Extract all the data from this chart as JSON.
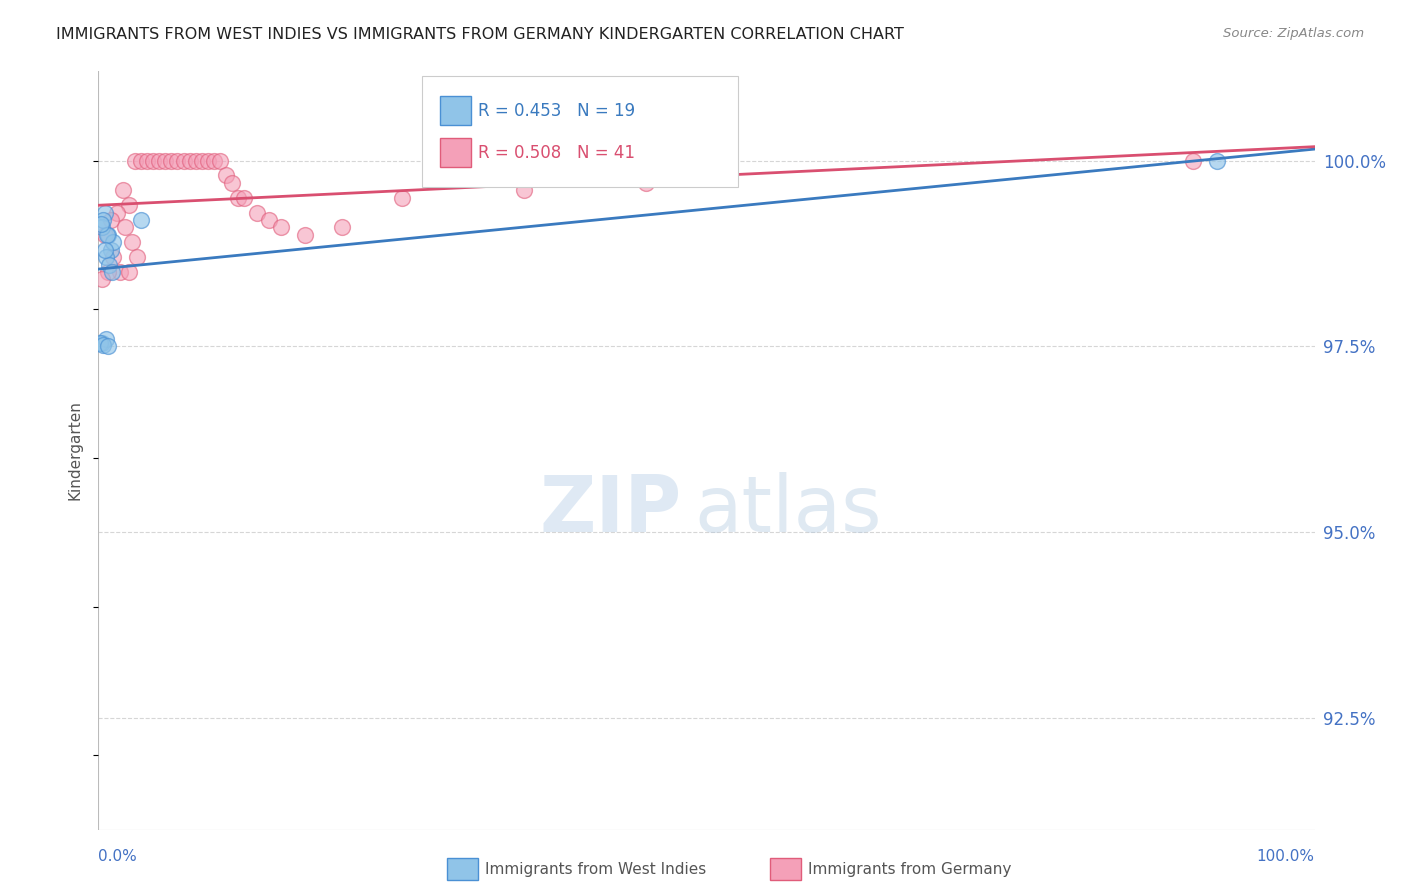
{
  "title": "IMMIGRANTS FROM WEST INDIES VS IMMIGRANTS FROM GERMANY KINDERGARTEN CORRELATION CHART",
  "source": "Source: ZipAtlas.com",
  "ylabel": "Kindergarten",
  "y_ticks": [
    92.5,
    95.0,
    97.5,
    100.0
  ],
  "y_tick_labels": [
    "92.5%",
    "95.0%",
    "97.5%",
    "100.0%"
  ],
  "x_range": [
    0,
    100
  ],
  "y_range": [
    91.0,
    101.2
  ],
  "blue_R": 0.453,
  "blue_N": 19,
  "pink_R": 0.508,
  "pink_N": 41,
  "blue_label": "Immigrants from West Indies",
  "pink_label": "Immigrants from Germany",
  "blue_color": "#90c4e8",
  "pink_color": "#f4a0b8",
  "blue_edge_color": "#4a90d4",
  "pink_edge_color": "#e05c7a",
  "blue_line_color": "#3a7abf",
  "pink_line_color": "#d94f70",
  "blue_points_x": [
    0.5,
    0.8,
    1.0,
    1.2,
    0.3,
    0.6,
    0.9,
    1.1,
    0.4,
    0.7,
    0.2,
    0.5,
    0.3,
    0.6,
    0.1,
    0.4,
    0.8,
    3.5,
    92.0
  ],
  "blue_points_y": [
    99.3,
    99.0,
    98.8,
    98.9,
    99.1,
    98.7,
    98.6,
    98.5,
    99.2,
    99.0,
    99.15,
    98.8,
    97.55,
    97.6,
    97.55,
    97.52,
    97.5,
    99.2,
    100.0
  ],
  "pink_points_x": [
    3.0,
    3.5,
    4.0,
    4.5,
    5.0,
    5.5,
    6.0,
    6.5,
    7.0,
    7.5,
    8.0,
    8.5,
    9.0,
    9.5,
    10.0,
    10.5,
    11.0,
    11.5,
    12.0,
    2.0,
    2.5,
    1.5,
    1.0,
    0.5,
    13.0,
    14.0,
    15.0,
    2.2,
    2.8,
    3.2,
    17.0,
    20.0,
    1.2,
    1.8,
    25.0,
    35.0,
    0.8,
    2.5,
    45.0,
    90.0,
    0.3
  ],
  "pink_points_y": [
    100.0,
    100.0,
    100.0,
    100.0,
    100.0,
    100.0,
    100.0,
    100.0,
    100.0,
    100.0,
    100.0,
    100.0,
    100.0,
    100.0,
    100.0,
    99.8,
    99.7,
    99.5,
    99.5,
    99.6,
    99.4,
    99.3,
    99.2,
    99.0,
    99.3,
    99.2,
    99.1,
    99.1,
    98.9,
    98.7,
    99.0,
    99.1,
    98.7,
    98.5,
    99.5,
    99.6,
    98.5,
    98.5,
    99.7,
    100.0,
    98.4
  ],
  "background_color": "#ffffff",
  "grid_color": "#cccccc",
  "title_color": "#222222",
  "axis_label_color": "#555555",
  "tick_label_color": "#4472c4",
  "source_color": "#888888"
}
